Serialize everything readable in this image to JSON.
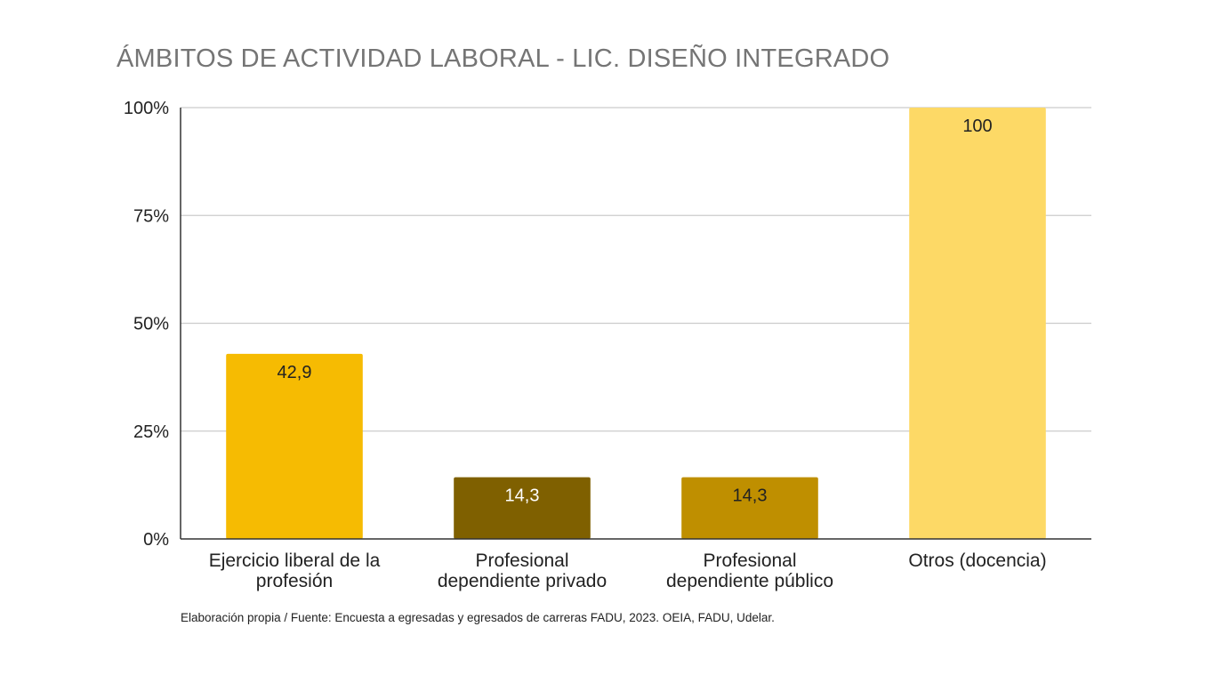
{
  "chart_data": {
    "type": "bar",
    "title": "ÁMBITOS DE ACTIVIDAD LABORAL - LIC. DISEÑO INTEGRADO",
    "categories": [
      [
        "Ejercicio liberal de la",
        "profesión"
      ],
      [
        "Profesional",
        "dependiente privado"
      ],
      [
        "Profesional",
        "dependiente público"
      ],
      [
        "Otros (docencia)"
      ]
    ],
    "values": [
      42.9,
      14.3,
      14.3,
      100
    ],
    "data_labels": [
      "42,9",
      "14,3",
      "14,3",
      "100"
    ],
    "bar_colors": [
      "#f6bb02",
      "#7f6000",
      "#bf8f00",
      "#fdd966"
    ],
    "label_colors": [
      "#222222",
      "#ffffff",
      "#222222",
      "#222222"
    ],
    "y_ticks": [
      0,
      25,
      50,
      75,
      100
    ],
    "y_tick_labels": [
      "0%",
      "25%",
      "50%",
      "75%",
      "100%"
    ],
    "ylim": [
      0,
      100
    ],
    "grid": true,
    "legend": "none"
  },
  "footnote": "Elaboración propia / Fuente: Encuesta a egresadas y egresados de carreras FADU, 2023. OEIA, FADU, Udelar."
}
